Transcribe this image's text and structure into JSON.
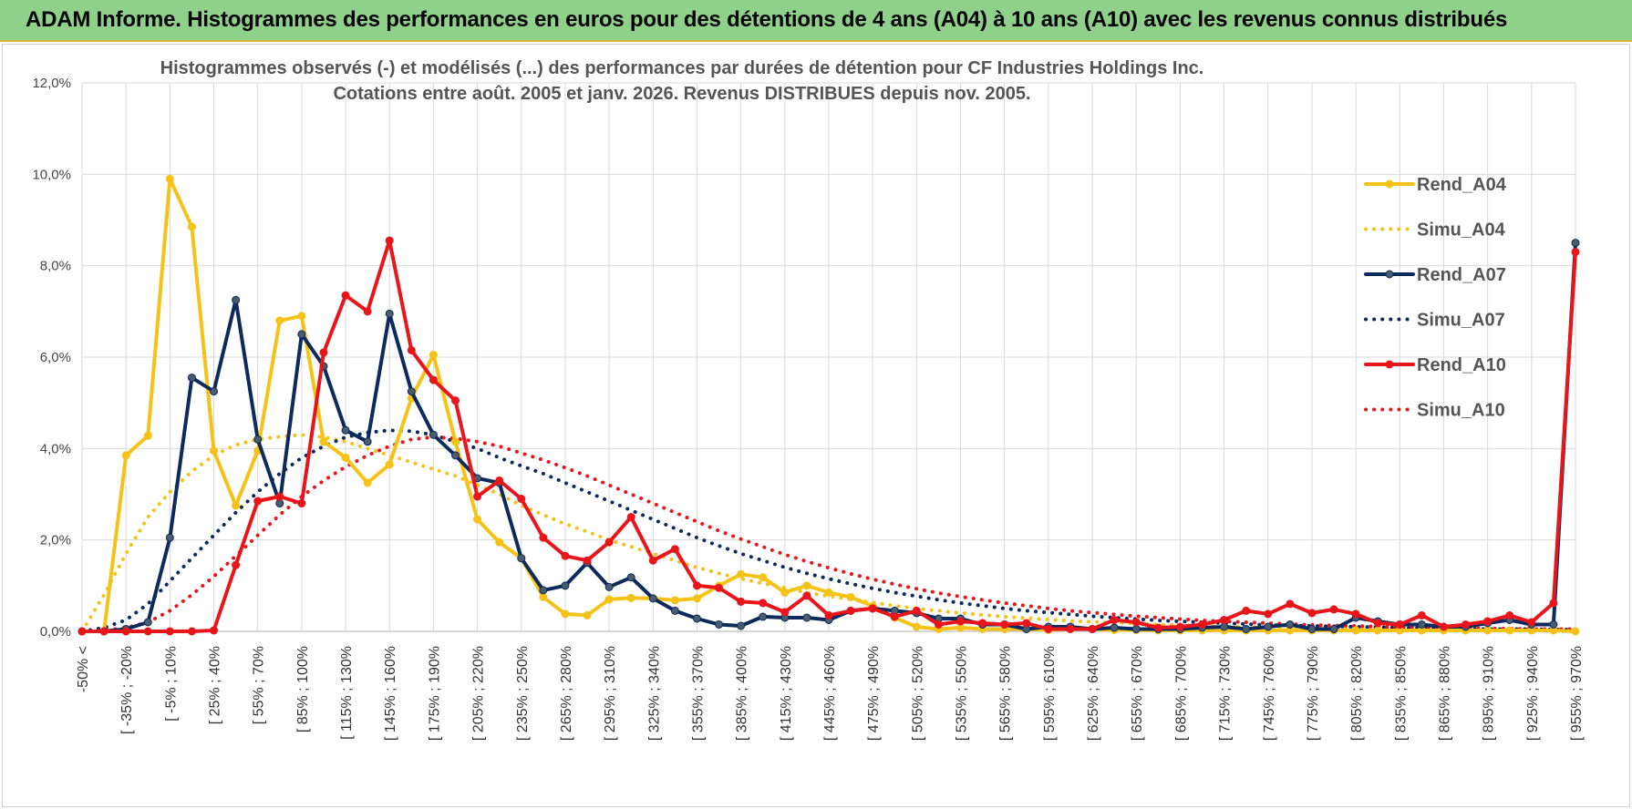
{
  "banner": {
    "title": "ADAM Informe. Histogrammes des performances en euros pour des détentions de 4 ans (A04) à 10 ans (A10) avec les revenus connus distribués"
  },
  "colors": {
    "banner_bg": "#8fd18a",
    "A04": "#f5c218",
    "A07": "#0d2a5c",
    "A10": "#e8151b",
    "grid": "#d9d9d9"
  },
  "chart_data": {
    "type": "line",
    "title_lines": [
      "Histogrammes observés (-) et modélisés (...) des performances par durées de détention pour CF Industries Holdings Inc.",
      "Cotations entre août. 2005 et janv. 2026. Revenus DISTRIBUES depuis nov. 2005."
    ],
    "ylim": [
      0,
      12
    ],
    "yticks": [
      0,
      2,
      4,
      6,
      8,
      10,
      12
    ],
    "ytick_labels": [
      "0,0%",
      "2,0%",
      "4,0%",
      "6,0%",
      "8,0%",
      "10,0%",
      "12,0%"
    ],
    "n_points": 69,
    "x_tick_labels": [
      "-50% <",
      "[ -35% ; -20%",
      "[ -5% ; 10%",
      "[ 25% ; 40%",
      "[ 55% ; 70%",
      "[ 85% ; 100%",
      "[ 115% ; 130%",
      "[ 145% ; 160%",
      "[ 175% ; 190%",
      "[ 205% ; 220%",
      "[ 235% ; 250%",
      "[ 265% ; 280%",
      "[ 295% ; 310%",
      "[ 325% ; 340%",
      "[ 355% ; 370%",
      "[ 385% ; 400%",
      "[ 415% ; 430%",
      "[ 445% ; 460%",
      "[ 475% ; 490%",
      "[ 505% ; 520%",
      "[ 535% ; 550%",
      "[ 565% ; 580%",
      "[ 595% ; 610%",
      "[ 625% ; 640%",
      "[ 655% ; 670%",
      "[ 685% ; 700%",
      "[ 715% ; 730%",
      "[ 745% ; 760%",
      "[ 775% ; 790%",
      "[ 805% ; 820%",
      "[ 835% ; 850%",
      "[ 865% ; 880%",
      "[ 895% ; 910%",
      "[ 925% ; 940%",
      "[ 955% ; 970%"
    ],
    "x_tick_indices": [
      0,
      2,
      4,
      6,
      8,
      10,
      12,
      14,
      16,
      18,
      20,
      22,
      24,
      26,
      28,
      30,
      32,
      34,
      36,
      38,
      40,
      42,
      44,
      46,
      48,
      50,
      52,
      54,
      56,
      58,
      60,
      62,
      64,
      66,
      68
    ],
    "series": [
      {
        "name": "Rend_A04",
        "color": "#f5c218",
        "style": "solid",
        "markers": true,
        "values": [
          0.0,
          0.0,
          3.85,
          4.28,
          9.9,
          8.85,
          3.95,
          2.75,
          3.95,
          6.8,
          6.9,
          4.15,
          3.8,
          3.25,
          3.65,
          5.1,
          6.05,
          4.15,
          2.45,
          1.95,
          1.6,
          0.75,
          0.38,
          0.35,
          0.7,
          0.73,
          0.72,
          0.68,
          0.72,
          1.0,
          1.25,
          1.18,
          0.85,
          1.0,
          0.85,
          0.75,
          0.55,
          0.3,
          0.1,
          0.05,
          0.08,
          0.05,
          0.05,
          0.05,
          0.03,
          0.05,
          0.05,
          0.03,
          0.03,
          0.02,
          0.02,
          0.02,
          0.02,
          0.02,
          0.02,
          0.02,
          0.02,
          0.02,
          0.02,
          0.02,
          0.02,
          0.02,
          0.02,
          0.02,
          0.02,
          0.02,
          0.02,
          0.02,
          0.0
        ]
      },
      {
        "name": "Simu_A04",
        "color": "#f5c218",
        "style": "dotted",
        "markers": false,
        "values": [
          0.0,
          0.8,
          1.7,
          2.5,
          3.05,
          3.5,
          3.85,
          4.08,
          4.2,
          4.26,
          4.3,
          4.25,
          4.15,
          4.0,
          3.85,
          3.7,
          3.55,
          3.4,
          3.2,
          3.0,
          2.75,
          2.55,
          2.35,
          2.18,
          2.0,
          1.85,
          1.7,
          1.55,
          1.4,
          1.27,
          1.15,
          1.05,
          0.95,
          0.85,
          0.77,
          0.7,
          0.63,
          0.56,
          0.5,
          0.45,
          0.4,
          0.36,
          0.32,
          0.29,
          0.26,
          0.23,
          0.21,
          0.19,
          0.17,
          0.15,
          0.14,
          0.12,
          0.11,
          0.1,
          0.09,
          0.08,
          0.07,
          0.07,
          0.06,
          0.05,
          0.05,
          0.04,
          0.04,
          0.04,
          0.03,
          0.03,
          0.03,
          0.03,
          0.03
        ]
      },
      {
        "name": "Rend_A07",
        "color": "#0d2a5c",
        "style": "solid",
        "markers": true,
        "values": [
          0.0,
          0.0,
          0.05,
          0.2,
          2.05,
          5.55,
          5.25,
          7.25,
          4.2,
          2.8,
          6.5,
          5.8,
          4.4,
          4.15,
          6.95,
          5.25,
          4.3,
          3.85,
          3.35,
          3.25,
          1.6,
          0.9,
          1.0,
          1.5,
          0.97,
          1.18,
          0.72,
          0.45,
          0.28,
          0.15,
          0.12,
          0.32,
          0.3,
          0.3,
          0.25,
          0.45,
          0.5,
          0.45,
          0.4,
          0.28,
          0.28,
          0.15,
          0.15,
          0.05,
          0.1,
          0.1,
          0.05,
          0.08,
          0.05,
          0.05,
          0.05,
          0.08,
          0.1,
          0.05,
          0.1,
          0.15,
          0.05,
          0.05,
          0.3,
          0.22,
          0.15,
          0.15,
          0.1,
          0.1,
          0.18,
          0.25,
          0.15,
          0.15,
          8.5
        ]
      },
      {
        "name": "Simu_A07",
        "color": "#0d2a5c",
        "style": "dotted",
        "markers": false,
        "values": [
          0.0,
          0.08,
          0.25,
          0.6,
          1.1,
          1.6,
          2.1,
          2.6,
          3.05,
          3.45,
          3.8,
          4.05,
          4.25,
          4.35,
          4.4,
          4.38,
          4.3,
          4.15,
          4.0,
          3.8,
          3.62,
          3.45,
          3.25,
          3.05,
          2.85,
          2.65,
          2.45,
          2.25,
          2.05,
          1.87,
          1.7,
          1.55,
          1.4,
          1.27,
          1.15,
          1.04,
          0.94,
          0.85,
          0.77,
          0.69,
          0.62,
          0.56,
          0.5,
          0.45,
          0.41,
          0.37,
          0.33,
          0.3,
          0.27,
          0.24,
          0.22,
          0.2,
          0.18,
          0.16,
          0.14,
          0.13,
          0.12,
          0.11,
          0.1,
          0.09,
          0.08,
          0.07,
          0.07,
          0.06,
          0.05,
          0.05,
          0.05,
          0.04,
          0.04
        ]
      },
      {
        "name": "Rend_A10",
        "color": "#e8151b",
        "style": "solid",
        "markers": true,
        "values": [
          0.0,
          0.0,
          0.0,
          0.0,
          0.0,
          0.0,
          0.02,
          1.45,
          2.85,
          2.95,
          2.8,
          6.1,
          7.35,
          7.0,
          8.55,
          6.15,
          5.5,
          5.05,
          2.95,
          3.3,
          2.9,
          2.05,
          1.65,
          1.55,
          1.95,
          2.5,
          1.55,
          1.8,
          1.0,
          0.95,
          0.65,
          0.62,
          0.42,
          0.78,
          0.35,
          0.45,
          0.5,
          0.32,
          0.45,
          0.15,
          0.22,
          0.18,
          0.15,
          0.18,
          0.05,
          0.05,
          0.05,
          0.25,
          0.2,
          0.08,
          0.1,
          0.15,
          0.25,
          0.45,
          0.38,
          0.6,
          0.4,
          0.48,
          0.38,
          0.18,
          0.15,
          0.35,
          0.1,
          0.15,
          0.22,
          0.35,
          0.2,
          0.62,
          8.3
        ]
      },
      {
        "name": "Simu_A10",
        "color": "#e8151b",
        "style": "dotted",
        "markers": false,
        "values": [
          0.0,
          0.02,
          0.08,
          0.2,
          0.45,
          0.8,
          1.2,
          1.65,
          2.1,
          2.55,
          2.95,
          3.3,
          3.6,
          3.85,
          4.05,
          4.2,
          4.25,
          4.22,
          4.15,
          4.05,
          3.9,
          3.75,
          3.58,
          3.4,
          3.2,
          3.0,
          2.8,
          2.6,
          2.4,
          2.2,
          2.02,
          1.85,
          1.68,
          1.53,
          1.39,
          1.26,
          1.14,
          1.03,
          0.93,
          0.84,
          0.76,
          0.69,
          0.62,
          0.56,
          0.5,
          0.45,
          0.41,
          0.37,
          0.33,
          0.3,
          0.27,
          0.24,
          0.22,
          0.2,
          0.18,
          0.16,
          0.14,
          0.13,
          0.12,
          0.1,
          0.09,
          0.08,
          0.08,
          0.07,
          0.06,
          0.06,
          0.05,
          0.05,
          0.05
        ]
      }
    ]
  }
}
